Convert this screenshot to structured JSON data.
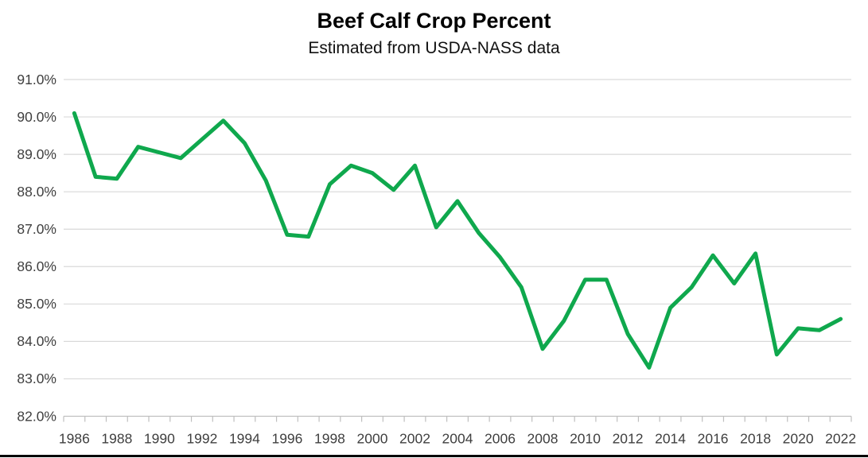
{
  "chart_data": {
    "type": "line",
    "title": "Beef Calf Crop Percent",
    "subtitle": "Estimated from USDA-NASS data",
    "x": [
      1986,
      1987,
      1988,
      1989,
      1990,
      1991,
      1992,
      1993,
      1994,
      1995,
      1996,
      1997,
      1998,
      1999,
      2000,
      2001,
      2002,
      2003,
      2004,
      2005,
      2006,
      2007,
      2008,
      2009,
      2010,
      2011,
      2012,
      2013,
      2014,
      2015,
      2016,
      2017,
      2018,
      2019,
      2020,
      2021,
      2022
    ],
    "series": [
      {
        "name": "Beef calf crop percent",
        "values": [
          90.1,
          88.4,
          88.35,
          89.2,
          89.05,
          88.9,
          89.4,
          89.9,
          89.3,
          88.3,
          86.85,
          86.8,
          88.2,
          88.7,
          88.5,
          88.05,
          88.7,
          87.05,
          87.75,
          86.9,
          86.25,
          85.45,
          83.8,
          84.55,
          85.65,
          85.65,
          84.2,
          83.3,
          84.9,
          85.45,
          86.3,
          85.55,
          86.35,
          83.65,
          84.35,
          84.3,
          84.6
        ]
      }
    ],
    "ylim": [
      82.0,
      91.0
    ],
    "ytick_step": 1.0,
    "y_tick_labels": [
      "91.0%",
      "90.0%",
      "89.0%",
      "88.0%",
      "87.0%",
      "86.0%",
      "85.0%",
      "84.0%",
      "83.0%",
      "82.0%"
    ],
    "x_tick_labels": [
      "1986",
      "1988",
      "1990",
      "1992",
      "1994",
      "1996",
      "1998",
      "2000",
      "2002",
      "2004",
      "2006",
      "2008",
      "2010",
      "2012",
      "2014",
      "2016",
      "2018",
      "2020",
      "2022"
    ],
    "grid": "horizontal",
    "legend": "none",
    "line_color": "#0FA84D",
    "gridline_color": "#D9D9D9",
    "axis_color": "#BFBFBF",
    "label_color": "#3F3F3F"
  }
}
